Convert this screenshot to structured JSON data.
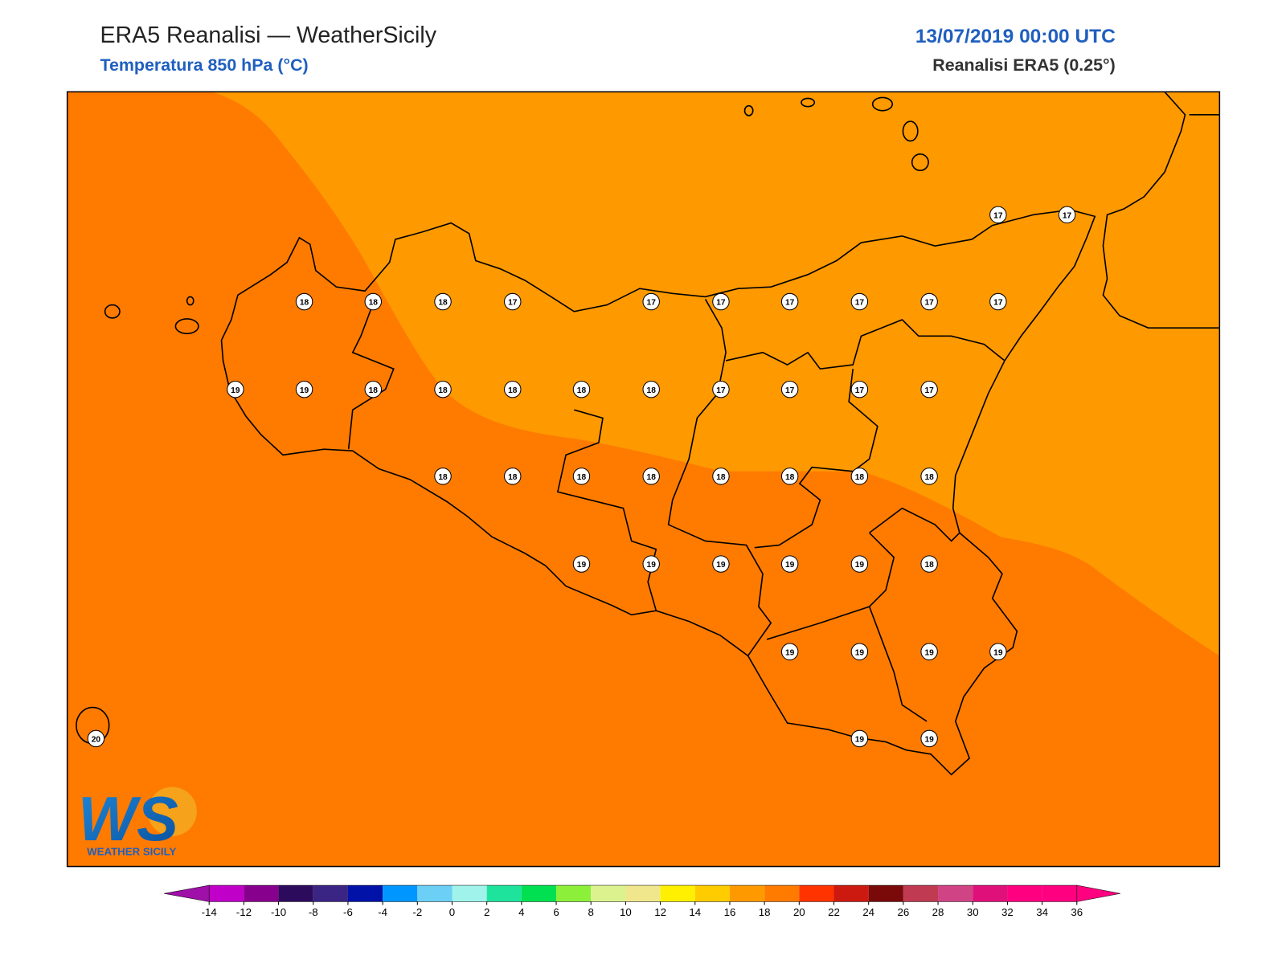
{
  "header": {
    "title": "ERA5 Reanalisi — WeatherSicily",
    "subtitle": "Temperatura 850 hPa (°C)",
    "datetime": "13/07/2019 00:00 UTC",
    "source": "Reanalisi ERA5 (0.25°)"
  },
  "stations": {
    "values": [
      17,
      17,
      18,
      18,
      18,
      17,
      17,
      17,
      17,
      17,
      17,
      17,
      19,
      19,
      18,
      18,
      18,
      18,
      18,
      17,
      17,
      17,
      17,
      18,
      18,
      18,
      18,
      18,
      18,
      18,
      18,
      19,
      19,
      19,
      19,
      19,
      18,
      19,
      19,
      19,
      19,
      20,
      19,
      19
    ]
  },
  "colorbar": {
    "ticks": [
      -14,
      -12,
      -10,
      -8,
      -6,
      -4,
      -2,
      0,
      2,
      4,
      6,
      8,
      10,
      12,
      14,
      16,
      18,
      20,
      22,
      24,
      26,
      28,
      30,
      32,
      34,
      36
    ],
    "colors": [
      "#c000c8",
      "#87008d",
      "#2c0a5c",
      "#3a2584",
      "#0012a8",
      "#0096ff",
      "#6ccff5",
      "#9ff3ea",
      "#1ee39c",
      "#00e050",
      "#8cf03a",
      "#dbf28e",
      "#f0e68c",
      "#ffef00",
      "#ffcc00",
      "#ff9900",
      "#ff7b00",
      "#ff3300",
      "#cc1a10",
      "#7a0a0a",
      "#c03a52",
      "#d04384",
      "#e0107a",
      "#ff0080",
      "#ff0080"
    ],
    "under_color": "#9e10a8",
    "over_color": "#ff0080"
  },
  "logo": {
    "mark": "WS",
    "name": "WEATHER SICILY"
  }
}
